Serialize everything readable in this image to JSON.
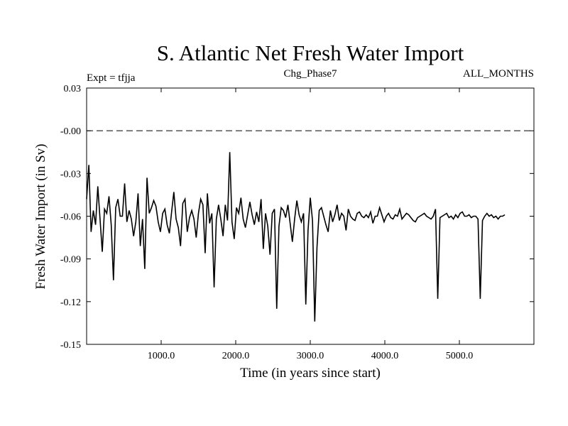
{
  "chart_data": {
    "type": "line",
    "title": "S. Atlantic Net Fresh Water Import",
    "subtitle_left": "Expt = tfjja",
    "subtitle_center": "Chg_Phase7",
    "subtitle_right": "ALL_MONTHS",
    "xlabel": "Time (in years since start)",
    "ylabel": "Fresh Water Import (in Sv)",
    "xlim": [
      0,
      6000
    ],
    "ylim": [
      -0.15,
      0.03
    ],
    "x_ticks": [
      1000,
      2000,
      3000,
      4000,
      5000
    ],
    "x_tick_labels": [
      "1000.0",
      "2000.0",
      "3000.0",
      "4000.0",
      "5000.0"
    ],
    "y_ticks": [
      0.03,
      0.0,
      -0.03,
      -0.06,
      -0.09,
      -0.12,
      -0.15
    ],
    "y_tick_labels": [
      "0.03",
      "-0.00",
      "-0.03",
      "-0.06",
      "-0.09",
      "-0.12",
      "-0.15"
    ],
    "zero_line": {
      "y": 0.0,
      "style": "dashed"
    },
    "series": [
      {
        "x_start": 0,
        "x_step": 30,
        "values": [
          -0.048,
          -0.024,
          -0.071,
          -0.056,
          -0.066,
          -0.039,
          -0.062,
          -0.085,
          -0.055,
          -0.058,
          -0.046,
          -0.066,
          -0.105,
          -0.054,
          -0.048,
          -0.06,
          -0.06,
          -0.037,
          -0.064,
          -0.056,
          -0.062,
          -0.074,
          -0.064,
          -0.044,
          -0.081,
          -0.062,
          -0.097,
          -0.033,
          -0.058,
          -0.054,
          -0.049,
          -0.053,
          -0.064,
          -0.071,
          -0.058,
          -0.055,
          -0.066,
          -0.072,
          -0.057,
          -0.043,
          -0.062,
          -0.068,
          -0.081,
          -0.051,
          -0.048,
          -0.071,
          -0.061,
          -0.056,
          -0.062,
          -0.075,
          -0.058,
          -0.048,
          -0.052,
          -0.086,
          -0.044,
          -0.065,
          -0.058,
          -0.11,
          -0.062,
          -0.052,
          -0.062,
          -0.074,
          -0.052,
          -0.063,
          -0.015,
          -0.064,
          -0.076,
          -0.054,
          -0.058,
          -0.047,
          -0.062,
          -0.068,
          -0.059,
          -0.05,
          -0.059,
          -0.066,
          -0.057,
          -0.064,
          -0.048,
          -0.083,
          -0.058,
          -0.067,
          -0.087,
          -0.058,
          -0.055,
          -0.125,
          -0.067,
          -0.054,
          -0.056,
          -0.061,
          -0.052,
          -0.065,
          -0.078,
          -0.062,
          -0.049,
          -0.059,
          -0.064,
          -0.058,
          -0.122,
          -0.07,
          -0.047,
          -0.063,
          -0.134,
          -0.082,
          -0.056,
          -0.054,
          -0.06,
          -0.066,
          -0.071,
          -0.056,
          -0.064,
          -0.059,
          -0.052,
          -0.063,
          -0.058,
          -0.06,
          -0.07,
          -0.055,
          -0.06,
          -0.062,
          -0.063,
          -0.058,
          -0.057,
          -0.06,
          -0.061,
          -0.059,
          -0.061,
          -0.057,
          -0.065,
          -0.06,
          -0.06,
          -0.054,
          -0.059,
          -0.064,
          -0.06,
          -0.058,
          -0.061,
          -0.062,
          -0.059,
          -0.06,
          -0.055,
          -0.062,
          -0.06,
          -0.058,
          -0.059,
          -0.061,
          -0.063,
          -0.064,
          -0.061,
          -0.06,
          -0.059,
          -0.058,
          -0.06,
          -0.061,
          -0.062,
          -0.06,
          -0.055,
          -0.118,
          -0.061,
          -0.06,
          -0.059,
          -0.058,
          -0.061,
          -0.06,
          -0.062,
          -0.059,
          -0.061,
          -0.058,
          -0.057,
          -0.06,
          -0.06,
          -0.059,
          -0.061,
          -0.06,
          -0.06,
          -0.062,
          -0.118,
          -0.063,
          -0.06,
          -0.058,
          -0.06,
          -0.059,
          -0.061,
          -0.06,
          -0.062,
          -0.06,
          -0.06,
          -0.059
        ]
      }
    ]
  }
}
